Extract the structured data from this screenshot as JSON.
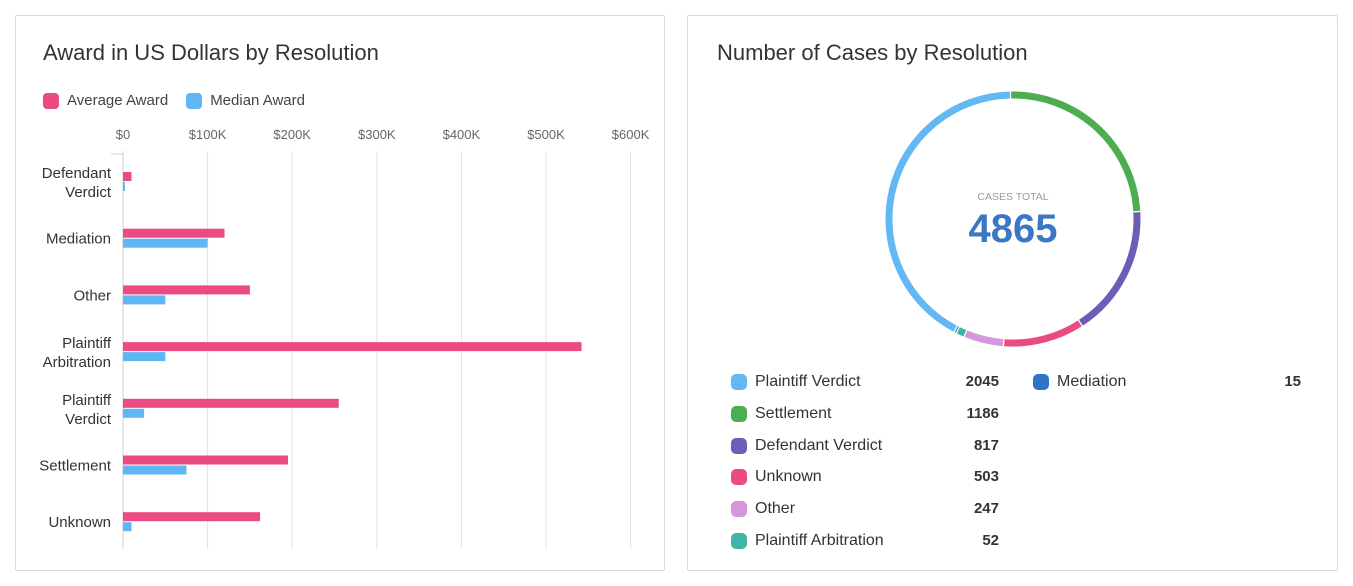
{
  "left_card": {
    "title": "Award in US Dollars by Resolution",
    "legend": [
      {
        "name": "Average Award",
        "color": "#ec4a82"
      },
      {
        "name": "Median Award",
        "color": "#5fb6f5"
      }
    ]
  },
  "right_card": {
    "title": "Number of Cases by Resolution",
    "center_label": "CASES TOTAL",
    "center_value": "4865"
  },
  "chart_data": [
    {
      "type": "bar",
      "orientation": "horizontal",
      "title": "Award in US Dollars by Resolution",
      "categories": [
        "Defendant Verdict",
        "Mediation",
        "Other",
        "Plaintiff Arbitration",
        "Plaintiff Verdict",
        "Settlement",
        "Unknown"
      ],
      "category_lines": [
        [
          "Defendant",
          "Verdict"
        ],
        [
          "Mediation"
        ],
        [
          "Other"
        ],
        [
          "Plaintiff",
          "Arbitration"
        ],
        [
          "Plaintiff",
          "Verdict"
        ],
        [
          "Settlement"
        ],
        [
          "Unknown"
        ]
      ],
      "series": [
        {
          "name": "Average Award",
          "color": "#ec4a82",
          "values": [
            10000,
            120000,
            150000,
            542000,
            255000,
            195000,
            162000
          ]
        },
        {
          "name": "Median Award",
          "color": "#5fb6f5",
          "values": [
            2000,
            100000,
            50000,
            50000,
            25000,
            75000,
            10000
          ]
        }
      ],
      "xlim": [
        0,
        600000
      ],
      "xticks": [
        0,
        100000,
        200000,
        300000,
        400000,
        500000,
        600000
      ],
      "xtick_labels": [
        "$0",
        "$100K",
        "$200K",
        "$300K",
        "$400K",
        "$500K",
        "$600K"
      ],
      "legend_position": "top-left",
      "grid": true
    },
    {
      "type": "pie",
      "variant": "donut",
      "title": "Number of Cases by Resolution",
      "total": 4865,
      "slices": [
        {
          "label": "Plaintiff Verdict",
          "value": 2045,
          "color": "#63b8f3"
        },
        {
          "label": "Settlement",
          "value": 1186,
          "color": "#4cad51"
        },
        {
          "label": "Defendant Verdict",
          "value": 817,
          "color": "#6e5db5"
        },
        {
          "label": "Unknown",
          "value": 503,
          "color": "#ec4a82"
        },
        {
          "label": "Other",
          "value": 247,
          "color": "#d696de"
        },
        {
          "label": "Plaintiff Arbitration",
          "value": 52,
          "color": "#3fb5a8"
        },
        {
          "label": "Mediation",
          "value": 15,
          "color": "#2f73c9"
        }
      ],
      "legend_position": "bottom"
    }
  ]
}
